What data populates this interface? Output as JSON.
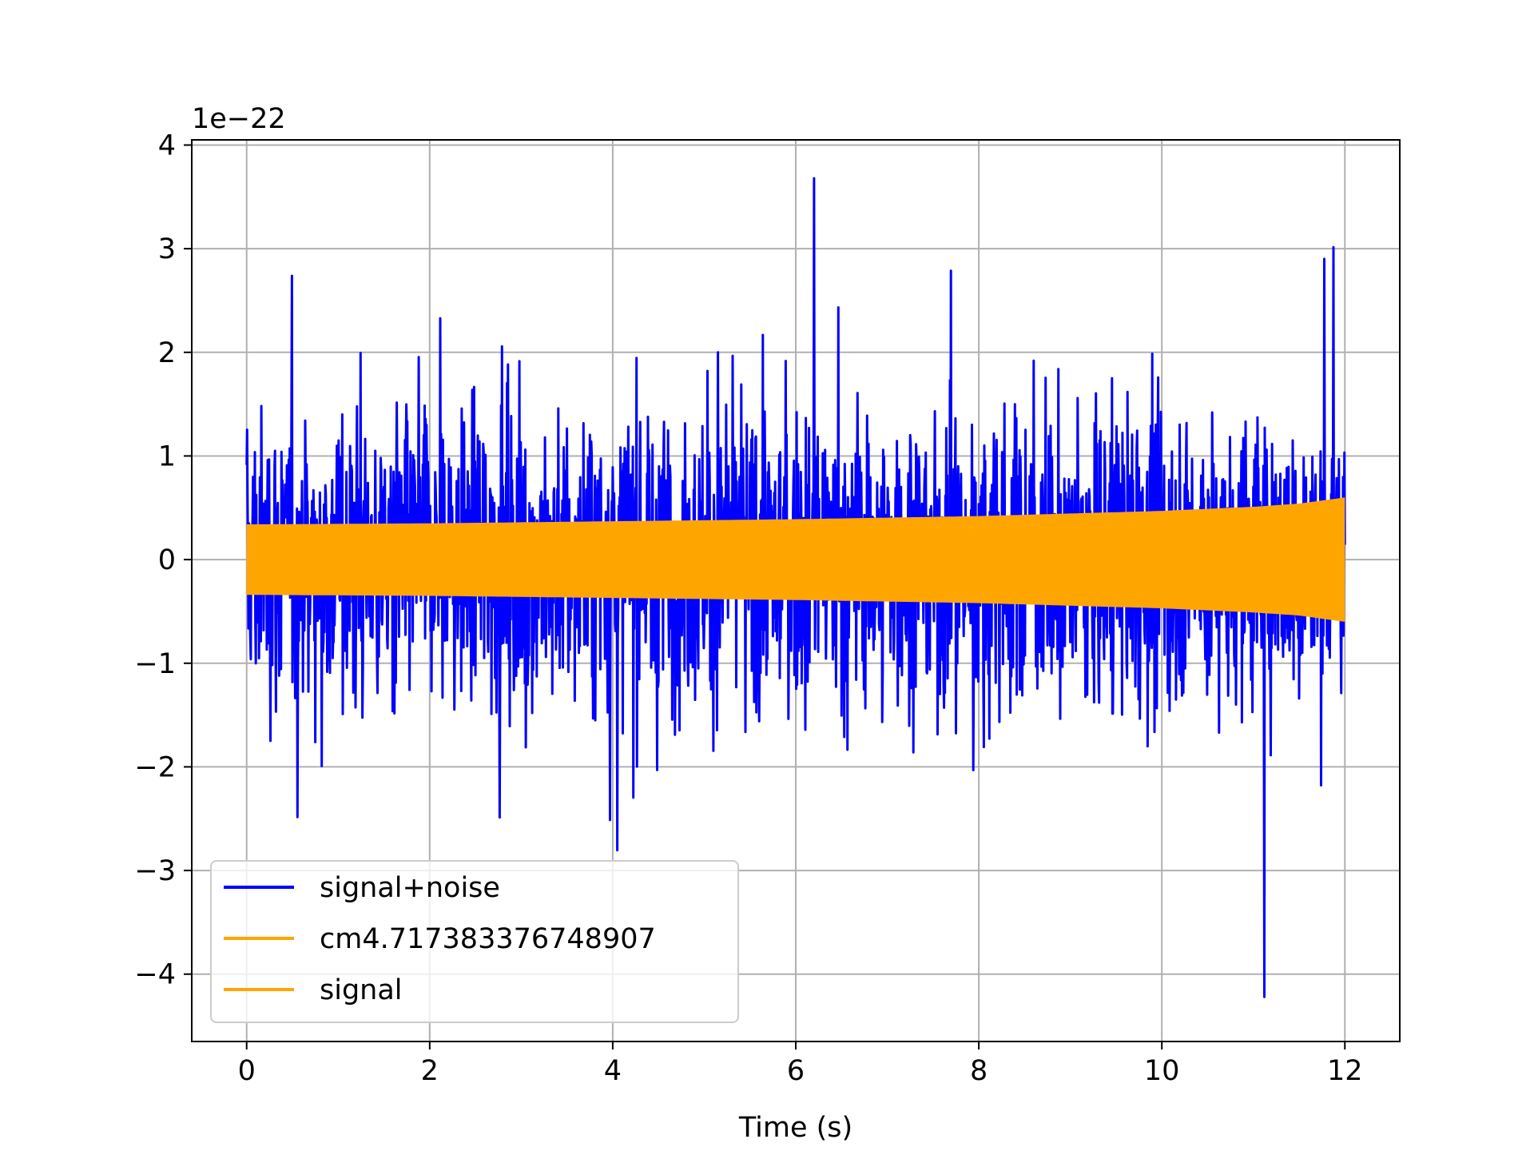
{
  "chart_data": {
    "type": "line",
    "title": "",
    "xlabel": "Time (s)",
    "ylabel": "",
    "y_offset_label": "1e−22",
    "y_scale": 1e-22,
    "xlim": [
      -0.6,
      12.6
    ],
    "ylim": [
      -4.65,
      4.05
    ],
    "xticks": [
      0,
      2,
      4,
      6,
      8,
      10,
      12
    ],
    "xtick_labels": [
      "0",
      "2",
      "4",
      "6",
      "8",
      "10",
      "12"
    ],
    "yticks": [
      -4,
      -3,
      -2,
      -1,
      0,
      1,
      2,
      3,
      4
    ],
    "ytick_labels": [
      "−4",
      "−3",
      "−2",
      "−1",
      "0",
      "1",
      "2",
      "3",
      "4"
    ],
    "grid": true,
    "legend_position": "lower-left",
    "series": [
      {
        "name": "signal+noise",
        "color": "#0000ff",
        "kind": "noise",
        "x_range": [
          0,
          12
        ],
        "typical_envelope": 1.25,
        "peak_max": 3.68,
        "peak_min": -4.22
      },
      {
        "name": "cm4.717383376748907",
        "color": "#ffa500",
        "kind": "legend-only"
      },
      {
        "name": "signal",
        "color": "#ffa500",
        "kind": "chirp",
        "x_range": [
          0,
          12
        ],
        "envelope": {
          "x": [
            0,
            2,
            4,
            6,
            8,
            10,
            11,
            11.5,
            12
          ],
          "amplitude": [
            0.34,
            0.35,
            0.37,
            0.39,
            0.42,
            0.47,
            0.51,
            0.54,
            0.6
          ]
        }
      }
    ]
  }
}
